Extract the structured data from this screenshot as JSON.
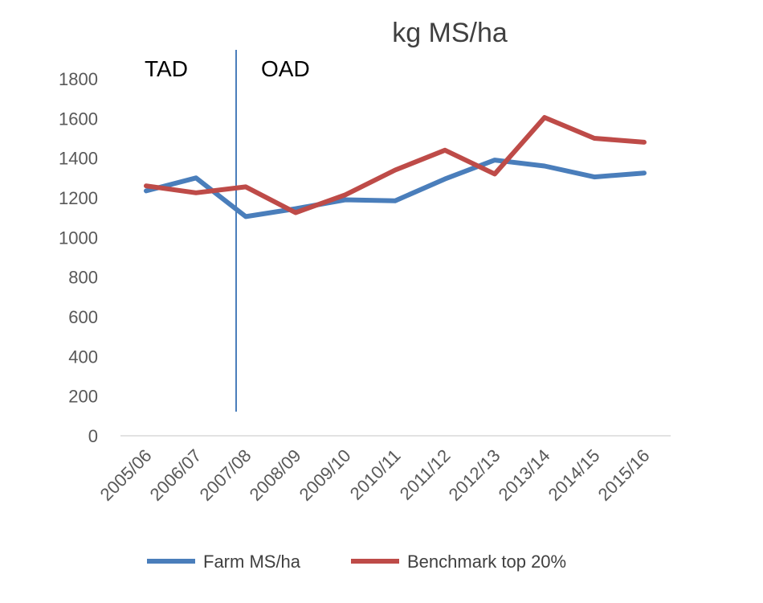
{
  "chart_data": {
    "type": "line",
    "title": "kg MS/ha",
    "xlabel": "",
    "ylabel": "",
    "categories": [
      "2005/06",
      "2006/07",
      "2007/08",
      "2008/09",
      "2009/10",
      "2010/11",
      "2011/12",
      "2012/13",
      "2013/14",
      "2014/15",
      "2015/16"
    ],
    "ylim": [
      0,
      1800
    ],
    "yticks": [
      0,
      200,
      400,
      600,
      800,
      1000,
      1200,
      1400,
      1600,
      1800
    ],
    "grid": false,
    "legend_position": "bottom",
    "series": [
      {
        "name": "Farm MS/ha",
        "color": "#4A7EBB",
        "values": [
          1235,
          1300,
          1105,
          1145,
          1190,
          1185,
          1295,
          1390,
          1360,
          1305,
          1325
        ]
      },
      {
        "name": "Benchmark top 20%",
        "color": "#BE4B48",
        "values": [
          1260,
          1225,
          1255,
          1125,
          1215,
          1340,
          1440,
          1320,
          1605,
          1500,
          1480
        ]
      }
    ],
    "annotations": {
      "divider_after_category": "2007/08",
      "divider_color": "#4A7EBB",
      "left_region_label": "TAD",
      "right_region_label": "OAD"
    }
  }
}
